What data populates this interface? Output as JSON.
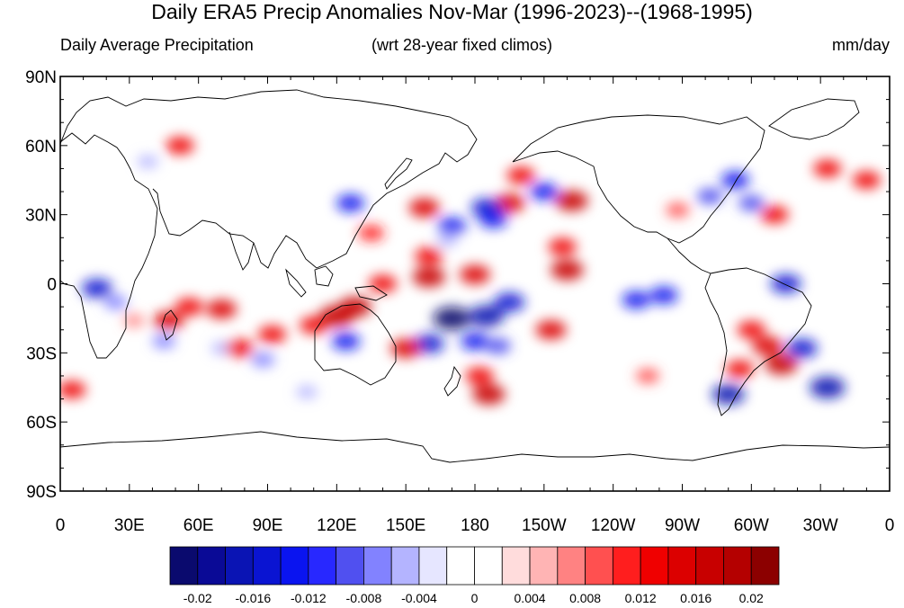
{
  "title": "Daily ERA5 Precip Anomalies Nov-Mar (1996-2023)--(1968-1995)",
  "left_subtitle": "Daily Average Precipitation",
  "center_subtitle": "(wrt 28-year fixed climos)",
  "right_subtitle": "mm/day",
  "map": {
    "projection": "cylindrical-equidistant",
    "lon_range": [
      0,
      360
    ],
    "lat_range": [
      -90,
      90
    ],
    "lat_ticks": [
      {
        "value": 90,
        "label": "90N"
      },
      {
        "value": 60,
        "label": "60N"
      },
      {
        "value": 30,
        "label": "30N"
      },
      {
        "value": 0,
        "label": "0"
      },
      {
        "value": -30,
        "label": "30S"
      },
      {
        "value": -60,
        "label": "60S"
      },
      {
        "value": -90,
        "label": "90S"
      }
    ],
    "lon_ticks": [
      {
        "value": 0,
        "label": "0"
      },
      {
        "value": 30,
        "label": "30E"
      },
      {
        "value": 60,
        "label": "60E"
      },
      {
        "value": 90,
        "label": "90E"
      },
      {
        "value": 120,
        "label": "120E"
      },
      {
        "value": 150,
        "label": "150E"
      },
      {
        "value": 180,
        "label": "180"
      },
      {
        "value": 210,
        "label": "150W"
      },
      {
        "value": 240,
        "label": "120W"
      },
      {
        "value": 270,
        "label": "90W"
      },
      {
        "value": 300,
        "label": "60W"
      },
      {
        "value": 330,
        "label": "30W"
      },
      {
        "value": 360,
        "label": "0"
      }
    ],
    "anomaly_blobs": [
      {
        "lon": 16,
        "lat": -2,
        "value": -0.014
      },
      {
        "lon": 24,
        "lat": -8,
        "value": -0.008
      },
      {
        "lon": 32,
        "lat": -16,
        "value": 0.006
      },
      {
        "lon": 47,
        "lat": -16,
        "value": 0.014
      },
      {
        "lon": 45,
        "lat": -25,
        "value": -0.008
      },
      {
        "lon": 56,
        "lat": -10,
        "value": 0.012
      },
      {
        "lon": 70,
        "lat": -11,
        "value": 0.014
      },
      {
        "lon": 70,
        "lat": -28,
        "value": -0.006
      },
      {
        "lon": 78,
        "lat": -28,
        "value": 0.012
      },
      {
        "lon": 92,
        "lat": -22,
        "value": 0.012
      },
      {
        "lon": 88,
        "lat": -33,
        "value": -0.008
      },
      {
        "lon": 110,
        "lat": -18,
        "value": 0.012
      },
      {
        "lon": 120,
        "lat": -14,
        "value": 0.018
      },
      {
        "lon": 124,
        "lat": -25,
        "value": -0.012
      },
      {
        "lon": 128,
        "lat": -10,
        "value": 0.016
      },
      {
        "lon": 140,
        "lat": 0,
        "value": 0.012
      },
      {
        "lon": 160,
        "lat": 3,
        "value": 0.016
      },
      {
        "lon": 180,
        "lat": 4,
        "value": 0.014
      },
      {
        "lon": 170,
        "lat": -15,
        "value": -0.02
      },
      {
        "lon": 185,
        "lat": -14,
        "value": -0.018
      },
      {
        "lon": 195,
        "lat": -8,
        "value": -0.014
      },
      {
        "lon": 160,
        "lat": -26,
        "value": -0.014
      },
      {
        "lon": 180,
        "lat": -25,
        "value": -0.012
      },
      {
        "lon": 190,
        "lat": -27,
        "value": -0.01
      },
      {
        "lon": 150,
        "lat": -28,
        "value": 0.014
      },
      {
        "lon": 186,
        "lat": -48,
        "value": 0.016
      },
      {
        "lon": 182,
        "lat": -40,
        "value": 0.012
      },
      {
        "lon": 213,
        "lat": -20,
        "value": 0.014
      },
      {
        "lon": 218,
        "lat": 16,
        "value": 0.012
      },
      {
        "lon": 220,
        "lat": 6,
        "value": 0.016
      },
      {
        "lon": 195,
        "lat": 35,
        "value": 0.014
      },
      {
        "lon": 200,
        "lat": 47,
        "value": 0.012
      },
      {
        "lon": 158,
        "lat": 33,
        "value": 0.014
      },
      {
        "lon": 170,
        "lat": 25,
        "value": -0.012
      },
      {
        "lon": 185,
        "lat": 33,
        "value": -0.014
      },
      {
        "lon": 210,
        "lat": 40,
        "value": -0.012
      },
      {
        "lon": 222,
        "lat": 36,
        "value": 0.016
      },
      {
        "lon": 168,
        "lat": 19,
        "value": -0.006
      },
      {
        "lon": 188,
        "lat": 28,
        "value": -0.012
      },
      {
        "lon": 160,
        "lat": 12,
        "value": 0.012
      },
      {
        "lon": 250,
        "lat": -7,
        "value": -0.012
      },
      {
        "lon": 262,
        "lat": -5,
        "value": -0.012
      },
      {
        "lon": 268,
        "lat": 32,
        "value": 0.008
      },
      {
        "lon": 282,
        "lat": 38,
        "value": -0.01
      },
      {
        "lon": 293,
        "lat": 45,
        "value": -0.012
      },
      {
        "lon": 300,
        "lat": 35,
        "value": -0.01
      },
      {
        "lon": 310,
        "lat": 30,
        "value": 0.012
      },
      {
        "lon": 333,
        "lat": 50,
        "value": 0.012
      },
      {
        "lon": 350,
        "lat": 45,
        "value": 0.012
      },
      {
        "lon": 315,
        "lat": 0,
        "value": -0.014
      },
      {
        "lon": 300,
        "lat": -20,
        "value": 0.012
      },
      {
        "lon": 307,
        "lat": -27,
        "value": 0.014
      },
      {
        "lon": 313,
        "lat": -35,
        "value": 0.016
      },
      {
        "lon": 322,
        "lat": -28,
        "value": -0.014
      },
      {
        "lon": 333,
        "lat": -45,
        "value": -0.018
      },
      {
        "lon": 290,
        "lat": -48,
        "value": -0.016
      },
      {
        "lon": 295,
        "lat": -37,
        "value": 0.012
      },
      {
        "lon": 5,
        "lat": -46,
        "value": 0.012
      },
      {
        "lon": 52,
        "lat": 60,
        "value": 0.012
      },
      {
        "lon": 38,
        "lat": 53,
        "value": -0.006
      },
      {
        "lon": 126,
        "lat": 35,
        "value": -0.012
      },
      {
        "lon": 255,
        "lat": -40,
        "value": 0.008
      },
      {
        "lon": 107,
        "lat": -47,
        "value": -0.006
      },
      {
        "lon": 135,
        "lat": 22,
        "value": 0.01
      }
    ]
  },
  "colorbar": {
    "colors": [
      "#0a0a6e",
      "#0a0a96",
      "#0a14b4",
      "#0a14d2",
      "#0a14f0",
      "#2828ff",
      "#5050f0",
      "#8282ff",
      "#b4b4ff",
      "#e6e6ff",
      "#ffffff",
      "#ffffff",
      "#ffdcdc",
      "#ffb4b4",
      "#ff8282",
      "#ff5050",
      "#ff1e1e",
      "#f00000",
      "#dc0000",
      "#c80000",
      "#b40000",
      "#8c0000"
    ],
    "labels": [
      "-0.02",
      "-0.016",
      "-0.012",
      "-0.008",
      "-0.004",
      "0",
      "0.004",
      "0.008",
      "0.012",
      "0.016",
      "0.02"
    ]
  }
}
